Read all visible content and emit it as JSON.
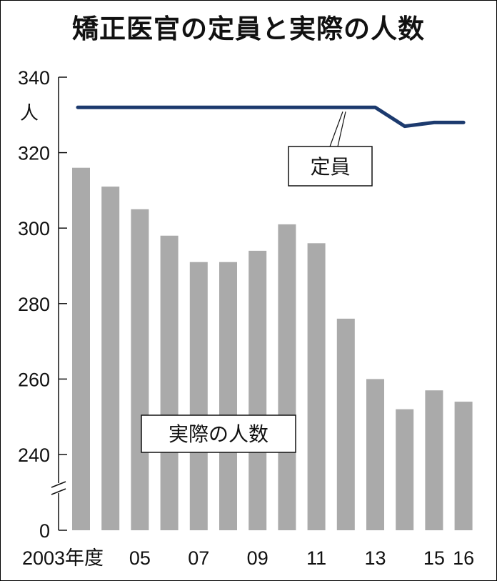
{
  "title": "矯正医官の定員と実際の人数",
  "chart_data": {
    "type": "bar",
    "title": "矯正医官の定員と実際の人数",
    "y_unit": "人",
    "y_ticks": [
      "340",
      "320",
      "300",
      "280",
      "260",
      "240",
      "0"
    ],
    "y_tick_values": [
      340,
      320,
      300,
      280,
      260,
      240
    ],
    "ylim": [
      240,
      340
    ],
    "y_axis_break": true,
    "categories": [
      "2003",
      "2004",
      "2005",
      "2006",
      "2007",
      "2008",
      "2009",
      "2010",
      "2011",
      "2012",
      "2013",
      "2014",
      "2015",
      "2016"
    ],
    "x_tick_labels": [
      {
        "index": 0,
        "text": "2003年度"
      },
      {
        "index": 2,
        "text": "05"
      },
      {
        "index": 4,
        "text": "07"
      },
      {
        "index": 6,
        "text": "09"
      },
      {
        "index": 8,
        "text": "11"
      },
      {
        "index": 10,
        "text": "13"
      },
      {
        "index": 12,
        "text": "15"
      },
      {
        "index": 13,
        "text": "16"
      }
    ],
    "series": [
      {
        "name": "実際の人数",
        "kind": "bar",
        "color": "#aaaaaa",
        "values": [
          316,
          311,
          305,
          298,
          291,
          291,
          294,
          301,
          296,
          276,
          260,
          252,
          257,
          254
        ]
      },
      {
        "name": "定員",
        "kind": "line",
        "color": "#1c3a6e",
        "values": [
          332,
          332,
          332,
          332,
          332,
          332,
          332,
          332,
          332,
          332,
          332,
          327,
          328,
          328
        ]
      }
    ]
  }
}
